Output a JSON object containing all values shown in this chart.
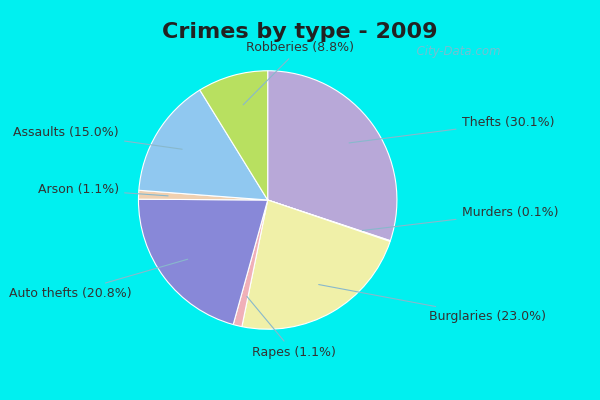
{
  "title": "Crimes by type - 2009",
  "slices": [
    {
      "label": "Thefts (30.1%)",
      "value": 30.1,
      "color": "#b8a8d8"
    },
    {
      "label": "Murders (0.1%)",
      "value": 0.1,
      "color": "#b8a8d8"
    },
    {
      "label": "Burglaries (23.0%)",
      "value": 23.0,
      "color": "#f0f0a8"
    },
    {
      "label": "Rapes (1.1%)",
      "value": 1.1,
      "color": "#f0b0b8"
    },
    {
      "label": "Auto thefts (20.8%)",
      "value": 20.8,
      "color": "#8888d8"
    },
    {
      "label": "Arson (1.1%)",
      "value": 1.1,
      "color": "#f0d0b0"
    },
    {
      "label": "Assaults (15.0%)",
      "value": 15.0,
      "color": "#90c8f0"
    },
    {
      "label": "Robberies (8.8%)",
      "value": 8.8,
      "color": "#b8e060"
    }
  ],
  "outer_bg_color": "#00f0f0",
  "inner_bg_color": "#d0f0e0",
  "title_fontsize": 16,
  "label_fontsize": 9,
  "title_color": "#222222",
  "label_color": "#333333",
  "line_color": "#88b8cc",
  "watermark": "  City-Data.com"
}
